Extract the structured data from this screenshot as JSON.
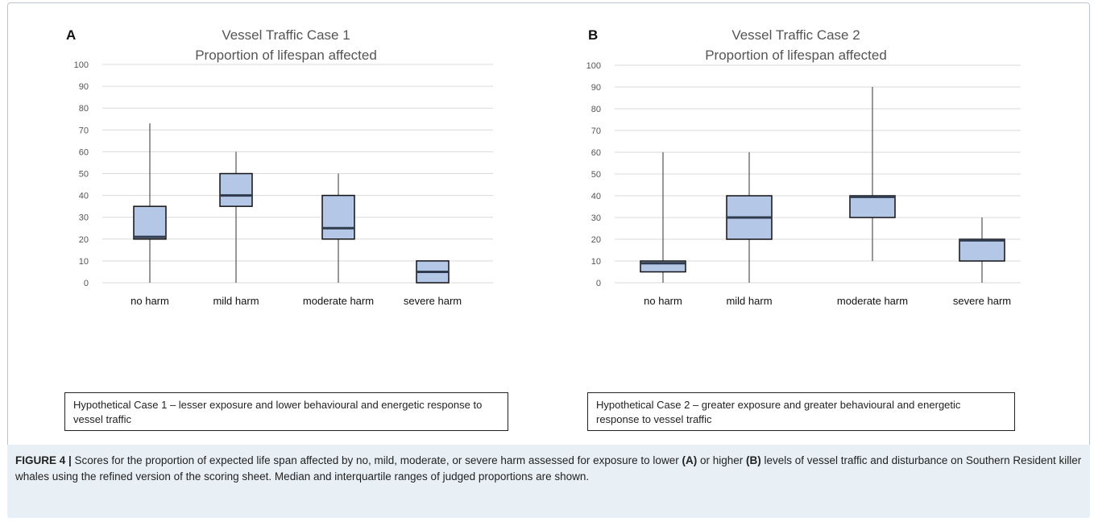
{
  "panels": [
    {
      "letter": "A",
      "title_line1": "Vessel Traffic Case 1",
      "title_line2": "Proportion of lifespan affected",
      "box_text": "Hypothetical Case 1 – lesser exposure and lower behavioural and energetic response to vessel traffic"
    },
    {
      "letter": "B",
      "title_line1": "Vessel Traffic Case 2",
      "title_line2": "Proportion of lifespan affected",
      "box_text": "Hypothetical Case 2 – greater exposure and greater behavioural and energetic response to vessel traffic"
    }
  ],
  "chart_data": [
    {
      "type": "box",
      "title": "Vessel Traffic Case 1 Proportion of lifespan affected",
      "categories": [
        "no harm",
        "mild harm",
        "moderate harm",
        "severe harm"
      ],
      "ylim": [
        0,
        100
      ],
      "yticks": [
        0,
        10,
        20,
        30,
        40,
        50,
        60,
        70,
        80,
        90,
        100
      ],
      "grid": true,
      "boxes": [
        {
          "min": 0,
          "q1": 20,
          "median": 21,
          "q3": 35,
          "max": 73
        },
        {
          "min": 0,
          "q1": 35,
          "median": 40,
          "q3": 50,
          "max": 60
        },
        {
          "min": 0,
          "q1": 20,
          "median": 25,
          "q3": 40,
          "max": 50
        },
        {
          "min": 0,
          "q1": 0,
          "median": 5,
          "q3": 10,
          "max": 10
        }
      ],
      "box_color": "#b4c7e7"
    },
    {
      "type": "box",
      "title": "Vessel Traffic Case 2 Proportion of lifespan affected",
      "categories": [
        "no harm",
        "mild harm",
        "moderate harm",
        "severe harm"
      ],
      "ylim": [
        0,
        100
      ],
      "yticks": [
        0,
        10,
        20,
        30,
        40,
        50,
        60,
        70,
        80,
        90,
        100
      ],
      "grid": true,
      "boxes": [
        {
          "min": 0,
          "q1": 5,
          "median": 9,
          "q3": 10,
          "max": 60
        },
        {
          "min": 0,
          "q1": 20,
          "median": 30,
          "q3": 40,
          "max": 60
        },
        {
          "min": 10,
          "q1": 30,
          "median": 39.5,
          "q3": 40,
          "max": 90
        },
        {
          "min": 0,
          "q1": 10,
          "median": 19.5,
          "q3": 20,
          "max": 30
        }
      ],
      "box_color": "#b4c7e7"
    }
  ],
  "caption": {
    "label": "FIGURE 4 |",
    "t1": " Scores for the proportion of expected life span affected by no, mild, moderate, or severe harm assessed for exposure to lower ",
    "b1": "(A)",
    "t2": " or higher ",
    "b2": "(B)",
    "t3": " levels of vessel traffic and disturbance on Southern Resident killer whales using the refined version of the scoring sheet. Median and interquartile ranges of judged proportions are shown."
  }
}
